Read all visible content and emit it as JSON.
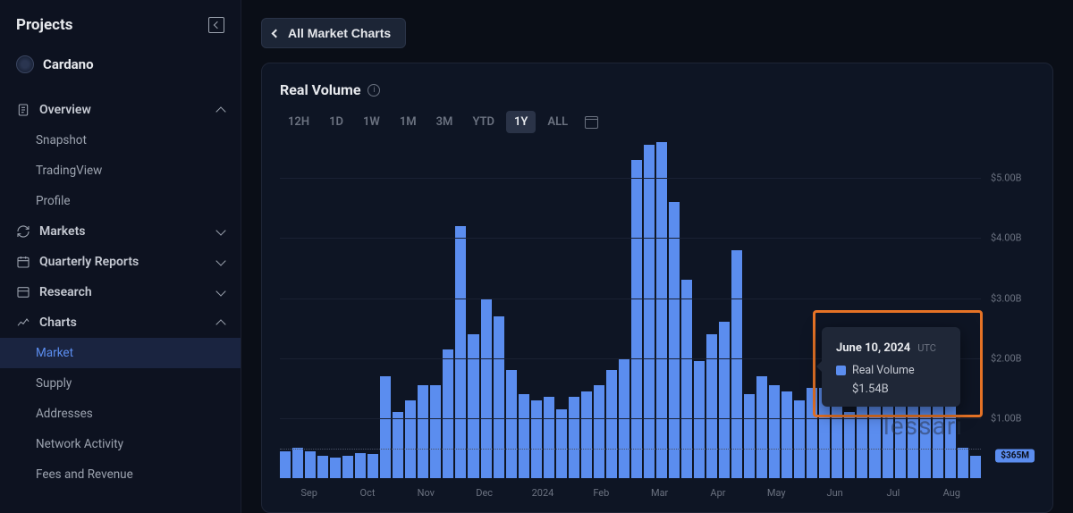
{
  "sidebar": {
    "title": "Projects",
    "project": "Cardano",
    "items": [
      {
        "label": "Overview",
        "icon": "doc",
        "expanded": true,
        "children": [
          "Snapshot",
          "TradingView",
          "Profile"
        ]
      },
      {
        "label": "Markets",
        "icon": "refresh",
        "expanded": false
      },
      {
        "label": "Quarterly Reports",
        "icon": "calendar",
        "expanded": false,
        "chev": "down"
      },
      {
        "label": "Research",
        "icon": "panel",
        "expanded": false,
        "chev": "down"
      },
      {
        "label": "Charts",
        "icon": "chart",
        "expanded": true,
        "children": [
          "Market",
          "Supply",
          "Addresses",
          "Network Activity",
          "Fees and Revenue"
        ],
        "active_child": "Market"
      }
    ]
  },
  "back_button": "All Market Charts",
  "chart": {
    "title": "Real Volume",
    "ranges": [
      "12H",
      "1D",
      "1W",
      "1M",
      "3M",
      "YTD",
      "1Y",
      "ALL"
    ],
    "active_range": "1Y",
    "type": "bar",
    "bar_color": "#5b8def",
    "background_color": "#0e1524",
    "grid_color": "#1a2133",
    "ymax": 5.6,
    "yticks": [
      {
        "v": 5.0,
        "label": "$5.00B"
      },
      {
        "v": 4.0,
        "label": "$4.00B"
      },
      {
        "v": 3.0,
        "label": "$3.00B"
      },
      {
        "v": 2.0,
        "label": "$2.00B"
      },
      {
        "v": 1.0,
        "label": "$1.00B"
      }
    ],
    "current_value_badge": "$365M",
    "current_value": 0.365,
    "dotted_level": 0.48,
    "x_labels": [
      "Sep",
      "Oct",
      "Nov",
      "Dec",
      "2024",
      "Feb",
      "Mar",
      "Apr",
      "May",
      "Jun",
      "Jul",
      "Aug"
    ],
    "values": [
      0.45,
      0.5,
      0.45,
      0.38,
      0.35,
      0.38,
      0.42,
      0.4,
      1.7,
      1.1,
      1.3,
      1.55,
      1.55,
      2.15,
      4.2,
      2.4,
      3.0,
      2.7,
      1.8,
      1.4,
      1.3,
      1.35,
      1.15,
      1.35,
      1.45,
      1.55,
      1.8,
      2.0,
      5.3,
      5.55,
      5.6,
      4.6,
      3.3,
      1.95,
      2.4,
      2.6,
      3.8,
      1.4,
      1.7,
      1.55,
      1.45,
      1.3,
      1.5,
      1.5,
      1.2,
      1.1,
      1.6,
      1.7,
      1.5,
      1.6,
      1.7,
      1.75,
      1.3,
      1.95,
      0.5,
      0.37
    ]
  },
  "tooltip": {
    "date": "June 10, 2024",
    "tz": "UTC",
    "series": "Real Volume",
    "value": "$1.54B",
    "highlight_color": "#e67326"
  },
  "watermark": "lessari"
}
